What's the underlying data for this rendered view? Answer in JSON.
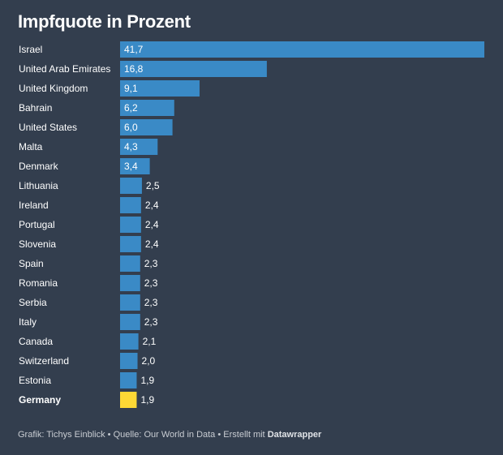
{
  "chart_data": {
    "type": "bar",
    "orientation": "horizontal",
    "title": "Impfquote in Prozent",
    "xlabel": "",
    "ylabel": "",
    "xlim": [
      0,
      41.7
    ],
    "grid": false,
    "legend": "none",
    "decimal_separator": ",",
    "categories": [
      "Israel",
      "United Arab Emirates",
      "United Kingdom",
      "Bahrain",
      "United States",
      "Malta",
      "Denmark",
      "Lithuania",
      "Ireland",
      "Portugal",
      "Slovenia",
      "Spain",
      "Romania",
      "Serbia",
      "Italy",
      "Canada",
      "Switzerland",
      "Estonia",
      "Germany"
    ],
    "values": [
      41.7,
      16.8,
      9.1,
      6.2,
      6.0,
      4.3,
      3.4,
      2.5,
      2.4,
      2.4,
      2.4,
      2.3,
      2.3,
      2.3,
      2.3,
      2.1,
      2.0,
      1.9,
      1.9
    ],
    "highlight": "Germany",
    "colors": {
      "default": "#3a8ac6",
      "highlight": "#fdd835",
      "background": "#333e4e"
    }
  },
  "footer": {
    "grafik": "Grafik: Tichys Einblick",
    "sep": " • ",
    "quelle": "Quelle: Our World in Data",
    "erstellt": "Erstellt mit ",
    "tool": "Datawrapper"
  }
}
